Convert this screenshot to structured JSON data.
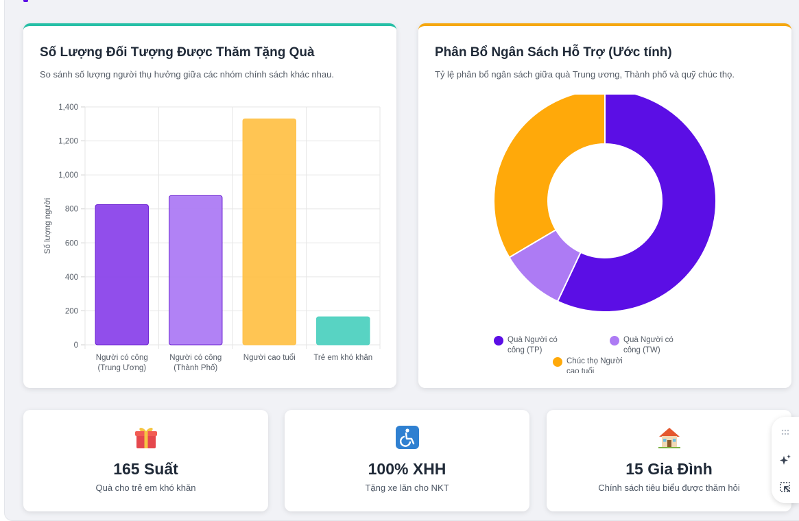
{
  "bar_card": {
    "title": "Số Lượng Đối Tượng Được Thăm Tặng Quà",
    "subtitle": "So sánh số lượng người thụ hưởng giữa các nhóm chính sách khác nhau."
  },
  "pie_card": {
    "title": "Phân Bổ Ngân Sách Hỗ Trợ (Ước tính)",
    "subtitle": "Tỷ lệ phân bổ ngân sách giữa quà Trung ương, Thành phố và quỹ chúc thọ."
  },
  "chart_data": [
    {
      "type": "bar",
      "categories": [
        [
          "Người có công",
          "(Trung Ương)"
        ],
        [
          "Người có công",
          "(Thành Phố)"
        ],
        [
          "Người cao tuổi"
        ],
        [
          "Trẻ em khó khăn"
        ]
      ],
      "values": [
        825,
        878,
        1330,
        165
      ],
      "colors": [
        "#8b45ea",
        "#ad7bf4",
        "#ffc24a",
        "#4fd1c0"
      ],
      "ylabel": "Số lượng người",
      "ylim": [
        0,
        1400
      ],
      "yticks": [
        "0",
        "200",
        "400",
        "600",
        "800",
        "1,000",
        "1,200",
        "1,400"
      ],
      "ytick_values": [
        0,
        200,
        400,
        600,
        800,
        1000,
        1200,
        1400
      ]
    },
    {
      "type": "pie",
      "labels": [
        "Quà Người có công (TP)",
        "Quà Người có công (TW)",
        "Chúc thọ Người cao tuổi"
      ],
      "legend_labels": [
        [
          "Quà Người có",
          "công (TP)"
        ],
        [
          "Quà Người có",
          "công (TW)"
        ],
        [
          "Chúc thọ Người",
          "cao tuổi"
        ]
      ],
      "values": [
        57,
        9.5,
        33.5
      ],
      "colors": [
        "#5b0ee5",
        "#ad7bf4",
        "#ffa90a"
      ]
    }
  ],
  "stats": [
    {
      "icon": "gift-icon",
      "value": "165 Suất",
      "label": "Quà cho trẻ em khó khăn"
    },
    {
      "icon": "wheelchair-icon",
      "value": "100% XHH",
      "label": "Tặng xe lăn cho NKT"
    },
    {
      "icon": "house-icon",
      "value": "15 Gia Đình",
      "label": "Chính sách tiêu biểu được thăm hỏi"
    }
  ]
}
